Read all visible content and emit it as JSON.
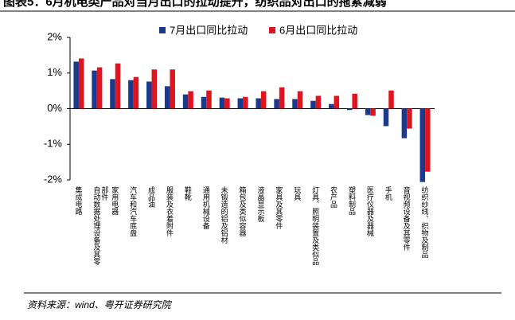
{
  "chart_data": {
    "type": "bar",
    "title": "图表5：6月机电类产品对当月出口的拉动提升，纺织品对出口的拖累减弱",
    "source": "资料来源：wind、粤开证券研究院",
    "categories": [
      "集成电路",
      "自动数据处理设备及其零部件",
      "家用电器",
      "汽车和汽车底盘",
      "成品油",
      "服装及衣着附件",
      "鞋靴",
      "通用机械设备",
      "未锻造的铝及铝材",
      "箱包及类似容器",
      "液晶显示板",
      "家具及其零件",
      "玩具",
      "灯具、照明装置及类似品",
      "农产品",
      "塑料制品",
      "医疗仪器及器械",
      "手机",
      "音视频设备及其零件",
      "纺织纱线、织物及制品"
    ],
    "series": [
      {
        "name": "7月出口同比拉动",
        "color": "#1b3a8c",
        "values": [
          1.32,
          1.07,
          0.83,
          0.8,
          0.76,
          0.63,
          0.4,
          0.33,
          0.31,
          0.29,
          0.29,
          0.27,
          0.27,
          0.22,
          0.13,
          -0.04,
          -0.18,
          -0.49,
          -0.83,
          -2.06
        ]
      },
      {
        "name": "6月出口同比拉动",
        "color": "#e0141e",
        "values": [
          1.41,
          1.16,
          1.27,
          0.89,
          1.1,
          1.1,
          0.49,
          0.51,
          0.29,
          0.33,
          0.49,
          0.6,
          0.49,
          0.36,
          0.36,
          0.42,
          -0.2,
          0.51,
          -0.56,
          -1.77
        ]
      }
    ],
    "ylim": [
      -2,
      2
    ],
    "yticks": [
      {
        "value": 2,
        "label": "2%"
      },
      {
        "value": 1,
        "label": "1%"
      },
      {
        "value": 0,
        "label": "0%"
      },
      {
        "value": -1,
        "label": "-1%"
      },
      {
        "value": -2,
        "label": "-2%"
      }
    ],
    "grid": false
  }
}
